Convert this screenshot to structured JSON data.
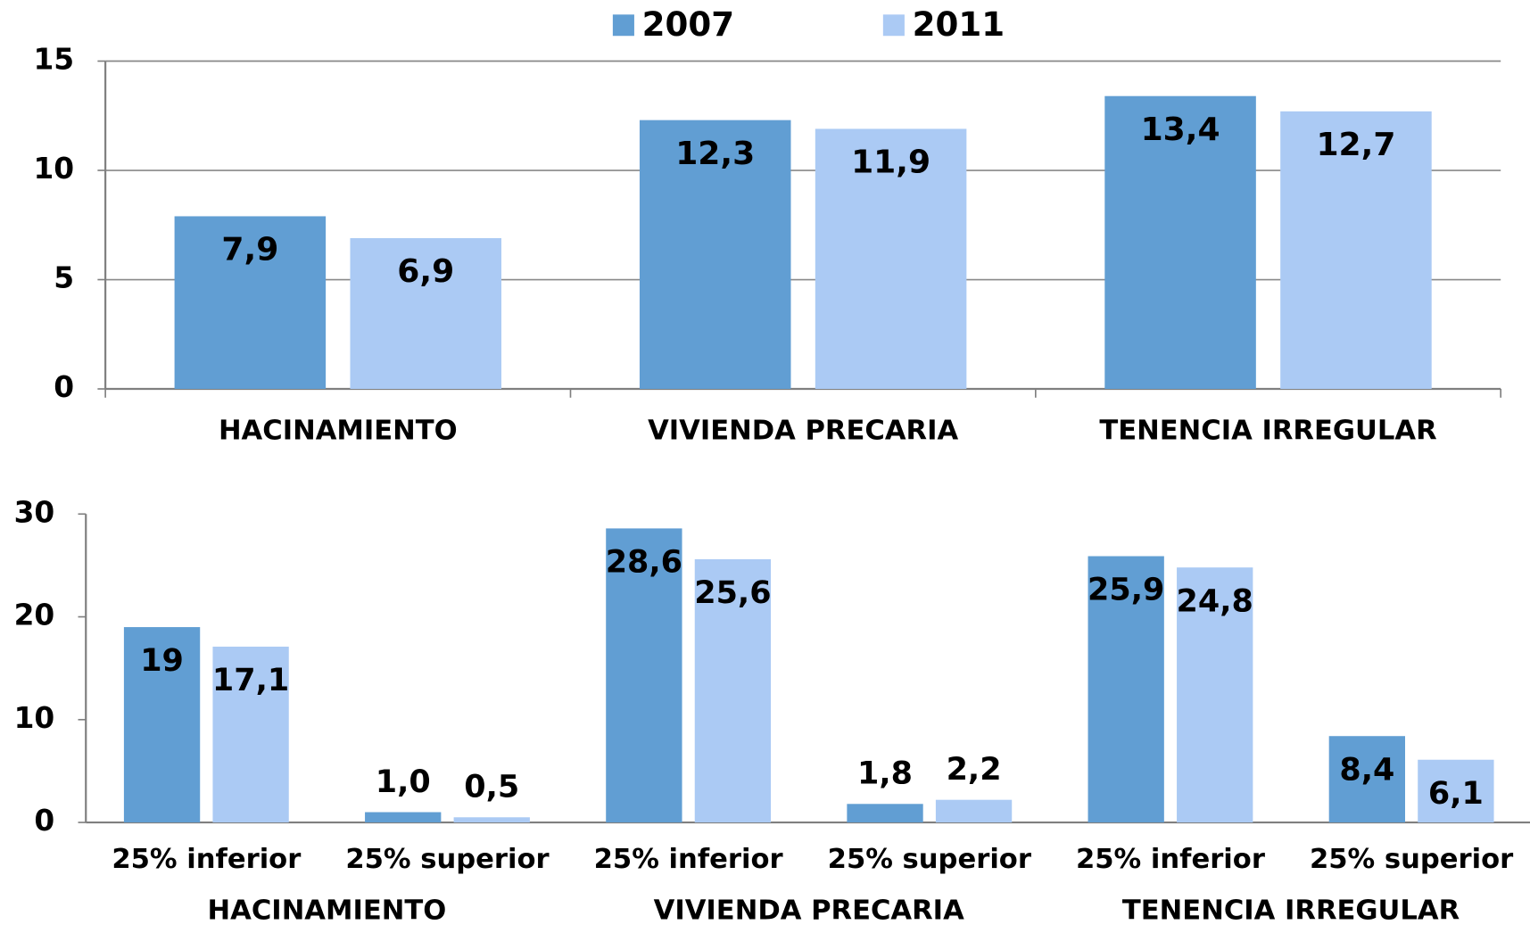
{
  "chart_data": [
    {
      "type": "bar",
      "legend": "top",
      "categories": [
        "HACINAMIENTO",
        "VIVIENDA PRECARIA",
        "TENENCIA IRREGULAR"
      ],
      "series": [
        {
          "name": "2007",
          "color": "#619ed3",
          "values": [
            7.9,
            12.3,
            13.4
          ],
          "value_labels": [
            "7,9",
            "12,3",
            "13,4"
          ]
        },
        {
          "name": "2011",
          "color": "#abcaf4",
          "values": [
            6.9,
            11.9,
            12.7
          ],
          "value_labels": [
            "6,9",
            "11,9",
            "12,7"
          ]
        }
      ],
      "ylim": [
        0,
        15
      ],
      "yticks": [
        0,
        5,
        10,
        15
      ],
      "grid": true
    },
    {
      "type": "bar",
      "categories": [
        "25% inferior",
        "25% superior",
        "25% inferior",
        "25% superior",
        "25% inferior",
        "25% superior"
      ],
      "groups": [
        "HACINAMIENTO",
        "VIVIENDA PRECARIA",
        "TENENCIA IRREGULAR"
      ],
      "series": [
        {
          "color": "#619ed3",
          "values": [
            19,
            1.0,
            28.6,
            1.8,
            25.9,
            8.4
          ],
          "value_labels": [
            "19",
            "1,0",
            "28,6",
            "1,8",
            "25,9",
            "8,4"
          ]
        },
        {
          "color": "#abcaf4",
          "values": [
            17.1,
            0.5,
            25.6,
            2.2,
            24.8,
            6.1
          ],
          "value_labels": [
            "17,1",
            "0,5",
            "25,6",
            "2,2",
            "24,8",
            "6,1"
          ]
        }
      ],
      "ylim": [
        0,
        30
      ],
      "yticks": [
        0,
        10,
        20,
        30
      ],
      "grid": false
    }
  ]
}
